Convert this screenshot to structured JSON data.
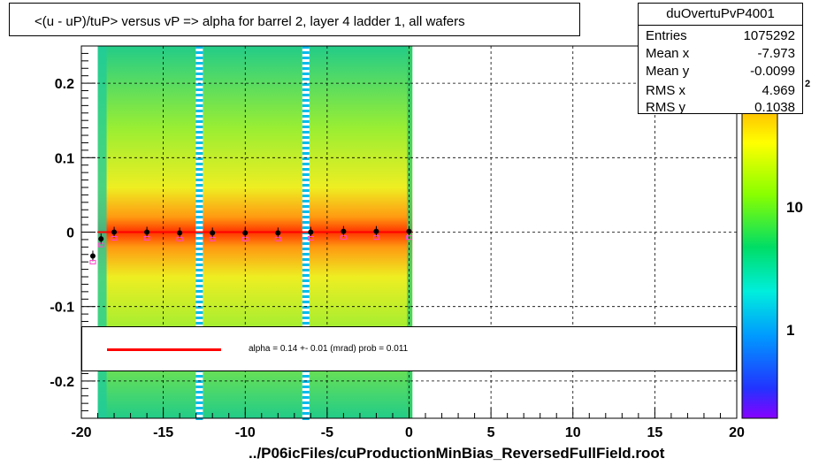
{
  "chart_data": {
    "type": "heatmap",
    "title": "<(u - uP)/tuP> versus   vP => alpha for barrel 2, layer 4 ladder 1, all wafers",
    "xlabel": "",
    "ylabel": "",
    "xlim": [
      -20,
      20
    ],
    "ylim": [
      -0.25,
      0.25
    ],
    "x_ticks": [
      "-20",
      "-15",
      "-10",
      "-5",
      "0",
      "5",
      "10",
      "15",
      "20"
    ],
    "x_tick_values": [
      -20,
      -15,
      -10,
      -5,
      0,
      5,
      10,
      15,
      20
    ],
    "y_ticks": [
      "-0.2",
      "-0.1",
      "0",
      "0.1",
      "0.2"
    ],
    "y_tick_values": [
      -0.2,
      -0.1,
      0,
      0.1,
      0.2
    ],
    "z_scale": "log",
    "z_ticks": [
      "1",
      "10"
    ],
    "z_tick_values": [
      1,
      10
    ],
    "z_edge_label": "2",
    "grid": true,
    "data_x_range": [
      -19,
      0.2
    ],
    "gaps_x": [
      -12.8,
      -6.3
    ],
    "profile_points": [
      {
        "x": -19.3,
        "y": -0.032
      },
      {
        "x": -18.8,
        "y": -0.009
      },
      {
        "x": -18.0,
        "y": 0.0
      },
      {
        "x": -16.0,
        "y": 0.0
      },
      {
        "x": -14.0,
        "y": -0.001
      },
      {
        "x": -12.0,
        "y": -0.001
      },
      {
        "x": -10.0,
        "y": -0.001
      },
      {
        "x": -8.0,
        "y": -0.001
      },
      {
        "x": -6.0,
        "y": 0.0
      },
      {
        "x": -4.0,
        "y": 0.001
      },
      {
        "x": -2.0,
        "y": 0.001
      },
      {
        "x": 0.0,
        "y": 0.001
      }
    ],
    "fit_line": {
      "x": [
        -19,
        0.2
      ],
      "y": [
        0,
        0
      ]
    },
    "stats": {
      "name": "duOvertuPvP4001",
      "rows": [
        {
          "label": "Entries",
          "value": "1075292"
        },
        {
          "label": "Mean x",
          "value": "-7.973"
        },
        {
          "label": "Mean y",
          "value": "-0.0099"
        },
        {
          "label": "RMS x",
          "value": "4.969"
        },
        {
          "label": "RMS y",
          "value": "0.1038"
        }
      ]
    },
    "fit_text": "alpha =    0.14 +-  0.01 (mrad) prob = 0.011",
    "footer": "../P06icFiles/cuProductionMinBias_ReversedFullField.root",
    "colors": {
      "fit_line": "#ff0000",
      "profile": "#000000",
      "profile2": "#ff44cc"
    }
  }
}
